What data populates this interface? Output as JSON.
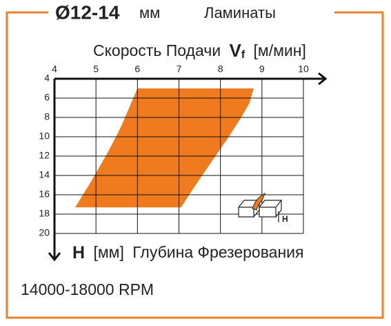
{
  "chart_data": {
    "type": "area",
    "title": {
      "diameter": "Ø12-14",
      "unit": "мм",
      "material": "Ламинаты"
    },
    "x_label": {
      "text": "Скорость Подачи",
      "symbol": "V",
      "subscript": "f",
      "unit": "[м/мин]"
    },
    "y_label": {
      "symbol": "H",
      "unit": "[мм]",
      "text": "Глубина Фрезерования"
    },
    "footer": "14000-18000 RPM",
    "icon_label": "H",
    "x": [
      6,
      8.8,
      8.7,
      8.5,
      8.2,
      7.8,
      7.4,
      7.05,
      4.5,
      4.9,
      5.3,
      5.6,
      5.8,
      5.95
    ],
    "y": [
      5,
      5,
      6.5,
      8,
      10,
      12.5,
      15,
      17.3,
      17.3,
      14.5,
      11.5,
      9,
      7,
      5.5
    ],
    "color": "#f07a1e",
    "xlim": [
      4,
      10
    ],
    "xticks": [
      4,
      5,
      6,
      7,
      8,
      9,
      10
    ],
    "ylim": [
      4,
      20
    ],
    "yticks": [
      4,
      6,
      8,
      10,
      12,
      14,
      16,
      18,
      20
    ],
    "y_inverted": true,
    "grid": true
  }
}
